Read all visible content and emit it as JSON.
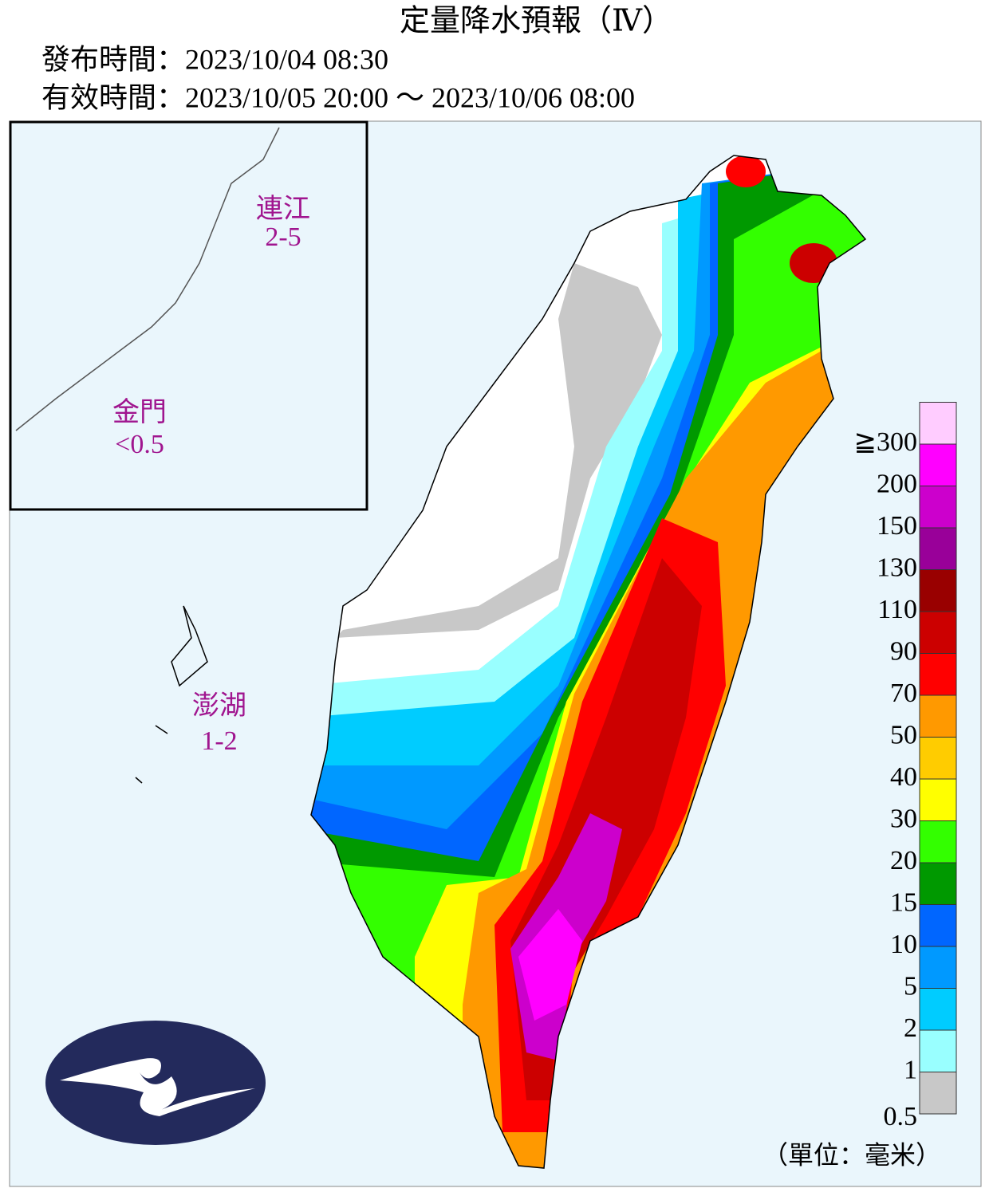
{
  "header": {
    "title": "定量降水預報（Ⅳ）",
    "issued": "發布時間：2023/10/04 08:30",
    "valid": "有效時間：2023/10/05 20:00 ～ 2023/10/06 08:00"
  },
  "insets": [
    {
      "name": "連江",
      "range": "2-5"
    },
    {
      "name": "金門",
      "range": "<0.5"
    },
    {
      "name": "澎湖",
      "range": "1-2"
    }
  ],
  "legend": {
    "thresholds": [
      0.5,
      1,
      2,
      5,
      10,
      15,
      20,
      30,
      40,
      50,
      70,
      90,
      110,
      130,
      150,
      200
    ],
    "top_label": "≧300",
    "colors": [
      "#c8c8c8",
      "#99ffff",
      "#00ccff",
      "#0099ff",
      "#0066ff",
      "#009900",
      "#33ff00",
      "#ffff00",
      "#ffcc00",
      "#ff9900",
      "#ff0000",
      "#cc0000",
      "#990000",
      "#990099",
      "#cc00cc",
      "#ff00ff",
      "#ffccff"
    ],
    "unit": "（單位：毫米）"
  }
}
